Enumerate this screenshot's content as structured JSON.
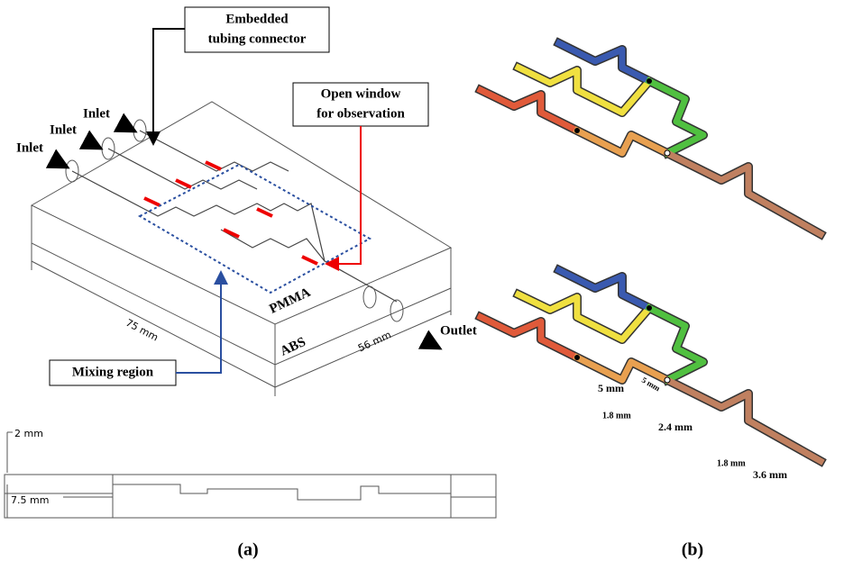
{
  "panel_a": {
    "connector_callout": [
      "Embedded",
      "tubing connector"
    ],
    "window_callout": [
      "Open window",
      "for observation"
    ],
    "inlets": [
      "Inlet",
      "Inlet",
      "Inlet"
    ],
    "materials": {
      "top": "PMMA",
      "bottom": "ABS"
    },
    "dimensions": {
      "length": "75 mm",
      "width": "56 mm"
    },
    "outlet": "Outlet",
    "mixing_callout": "Mixing region",
    "section_dimensions": {
      "top": "2 mm",
      "height": "7.5 mm"
    },
    "label": "(a)"
  },
  "panel_b": {
    "dimensions": [
      "5 mm",
      "5 mm",
      "1.8 mm",
      "2.4 mm",
      "1.8 mm",
      "3.6 mm"
    ],
    "label": "(b)"
  }
}
